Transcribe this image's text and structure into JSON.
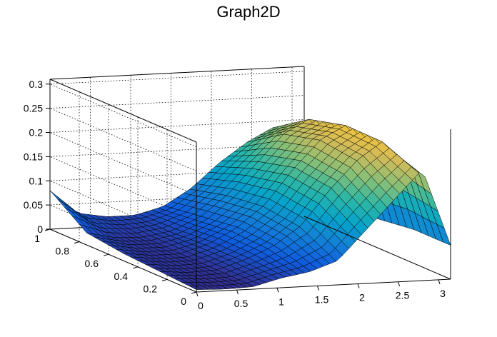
{
  "chart_data": {
    "type": "surface",
    "title": "Graph2D",
    "xlabel": "",
    "ylabel": "",
    "zlabel": "",
    "xlim": [
      0,
      3.15
    ],
    "ylim": [
      0,
      1
    ],
    "zlim": [
      0,
      0.31
    ],
    "x_ticks": [
      "0",
      "0.5",
      "1",
      "1.5",
      "2",
      "2.5",
      "3"
    ],
    "y_ticks": [
      "0",
      "0.2",
      "0.4",
      "0.6",
      "0.8",
      "1"
    ],
    "z_ticks": [
      "0",
      "0.05",
      "0.1",
      "0.15",
      "0.2",
      "0.25",
      "0.3"
    ],
    "x_tick_values": [
      0,
      0.5,
      1,
      1.5,
      2,
      2.5,
      3
    ],
    "y_tick_values": [
      0,
      0.2,
      0.4,
      0.6,
      0.8,
      1
    ],
    "z_tick_values": [
      0,
      0.05,
      0.1,
      0.15,
      0.2,
      0.25,
      0.3
    ],
    "grid": true,
    "colormap": [
      "#352a87",
      "#0f5cdd",
      "#1481d6",
      "#06a4ca",
      "#2eb7a4",
      "#87bf77",
      "#d1bb59",
      "#fec832",
      "#f9fb0e"
    ],
    "surface_x": [
      0,
      0.35,
      0.7,
      1.05,
      1.4,
      1.75,
      2.1,
      2.45,
      2.8,
      3.15
    ],
    "surface_y": [
      0,
      0.25,
      0.5,
      0.75,
      1
    ],
    "surface_z": [
      [
        0.005,
        0.003,
        0.005,
        0.02,
        0.03,
        0.05,
        0.11,
        0.17,
        0.23,
        0.07
      ],
      [
        0.01,
        0.005,
        0.007,
        0.025,
        0.05,
        0.09,
        0.16,
        0.22,
        0.26,
        0.07
      ],
      [
        0.015,
        0.008,
        0.008,
        0.025,
        0.055,
        0.1,
        0.17,
        0.23,
        0.26,
        0.06
      ],
      [
        0.025,
        0.012,
        0.01,
        0.02,
        0.045,
        0.09,
        0.15,
        0.21,
        0.24,
        0.05
      ],
      [
        0.08,
        0.03,
        0.02,
        0.02,
        0.035,
        0.07,
        0.12,
        0.16,
        0.19,
        0.02
      ]
    ]
  }
}
